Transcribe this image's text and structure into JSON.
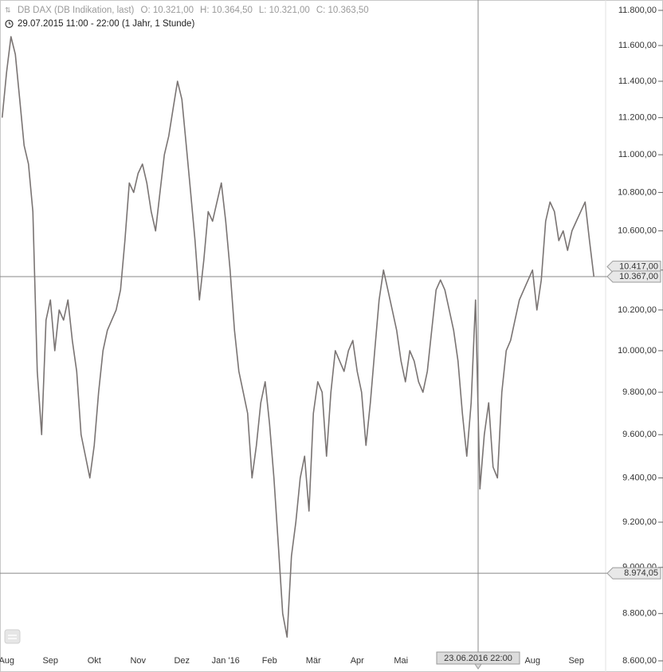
{
  "chart_data": {
    "type": "line",
    "title": "DB DAX (DB Indikation, last)",
    "ohlc": [
      "O: 10.321,00",
      "H: 10.364,50",
      "L: 10.321,00",
      "C: 10.363,50"
    ],
    "subtitle": "29.07.2015 11:00 - 22:00 (1 Jahr, 1 Stunde)",
    "color": "#7a7473",
    "log_y": true,
    "grid": false,
    "ylim": [
      8600,
      11800
    ],
    "yticks": [
      {
        "value": 8600,
        "label": "8.600,00"
      },
      {
        "value": 8800,
        "label": "8.800,00"
      },
      {
        "value": 9000,
        "label": "9.000,00"
      },
      {
        "value": 9200,
        "label": "9.200,00"
      },
      {
        "value": 9400,
        "label": "9.400,00"
      },
      {
        "value": 9600,
        "label": "9.600,00"
      },
      {
        "value": 9800,
        "label": "9.800,00"
      },
      {
        "value": 10000,
        "label": "10.000,00"
      },
      {
        "value": 10200,
        "label": "10.200,00"
      },
      {
        "value": 10400,
        "label": "10.400,00"
      },
      {
        "value": 10600,
        "label": "10.600,00"
      },
      {
        "value": 10800,
        "label": "10.800,00"
      },
      {
        "value": 11000,
        "label": "11.000,00"
      },
      {
        "value": 11200,
        "label": "11.200,00"
      },
      {
        "value": 11400,
        "label": "11.400,00"
      },
      {
        "value": 11600,
        "label": "11.600,00"
      },
      {
        "value": 11800,
        "label": "11.800,00"
      }
    ],
    "categories": [
      null,
      "Aug",
      null,
      null,
      null,
      null,
      null,
      null,
      null,
      null,
      null,
      "Sep",
      null,
      null,
      null,
      null,
      null,
      null,
      null,
      null,
      null,
      "Okt",
      null,
      null,
      null,
      null,
      null,
      null,
      null,
      null,
      null,
      "Nov",
      null,
      null,
      null,
      null,
      null,
      null,
      null,
      null,
      null,
      "Dez",
      null,
      null,
      null,
      null,
      null,
      null,
      null,
      null,
      null,
      "Jan '16",
      null,
      null,
      null,
      null,
      null,
      null,
      null,
      null,
      null,
      "Feb",
      null,
      null,
      null,
      null,
      null,
      null,
      null,
      null,
      null,
      "Mär",
      null,
      null,
      null,
      null,
      null,
      null,
      null,
      null,
      null,
      "Apr",
      null,
      null,
      null,
      null,
      null,
      null,
      null,
      null,
      null,
      "Mai",
      null,
      null,
      null,
      null,
      null,
      null,
      null,
      null,
      null,
      null,
      null,
      null,
      null,
      null,
      null,
      null,
      null,
      null,
      null,
      null,
      null,
      null,
      null,
      null,
      null,
      null,
      null,
      null,
      null,
      "Aug",
      null,
      null,
      null,
      null,
      null,
      null,
      null,
      null,
      null,
      "Sep",
      null,
      null,
      null,
      null
    ],
    "values": [
      11200,
      11450,
      11650,
      11550,
      11300,
      11050,
      10950,
      10700,
      9900,
      9600,
      10150,
      10250,
      10000,
      10200,
      10150,
      10250,
      10050,
      9900,
      9600,
      9500,
      9400,
      9550,
      9800,
      10000,
      10100,
      10150,
      10200,
      10300,
      10550,
      10850,
      10800,
      10900,
      10950,
      10850,
      10700,
      10600,
      10800,
      11000,
      11100,
      11250,
      11400,
      11300,
      11050,
      10800,
      10550,
      10250,
      10450,
      10700,
      10650,
      10750,
      10850,
      10650,
      10400,
      10100,
      9900,
      9800,
      9700,
      9400,
      9550,
      9750,
      9850,
      9650,
      9400,
      9100,
      8800,
      8700,
      9050,
      9200,
      9400,
      9500,
      9250,
      9700,
      9850,
      9800,
      9500,
      9800,
      10000,
      9950,
      9900,
      10000,
      10050,
      9900,
      9800,
      9550,
      9750,
      10000,
      10250,
      10400,
      10300,
      10200,
      10100,
      9950,
      9850,
      10000,
      9950,
      9850,
      9800,
      9900,
      10100,
      10300,
      10350,
      10300,
      10200,
      10100,
      9950,
      9700,
      9500,
      9750,
      10250,
      9350,
      9600,
      9750,
      9450,
      9400,
      9800,
      10000,
      10050,
      10150,
      10250,
      10300,
      10350,
      10400,
      10200,
      10350,
      10650,
      10750,
      10700,
      10550,
      10600,
      10500,
      10600,
      10650,
      10700,
      10750,
      10550,
      10367
    ],
    "annotations": [
      {
        "value": 10417,
        "label": "10.417,00",
        "show_line": false
      },
      {
        "value": 10367,
        "label": "10.367,00",
        "show_line": true
      },
      {
        "value": 8974.05,
        "label": "8.974,05",
        "show_line": true
      }
    ],
    "crosshair": {
      "label": "23.06.2016 22:00"
    }
  }
}
